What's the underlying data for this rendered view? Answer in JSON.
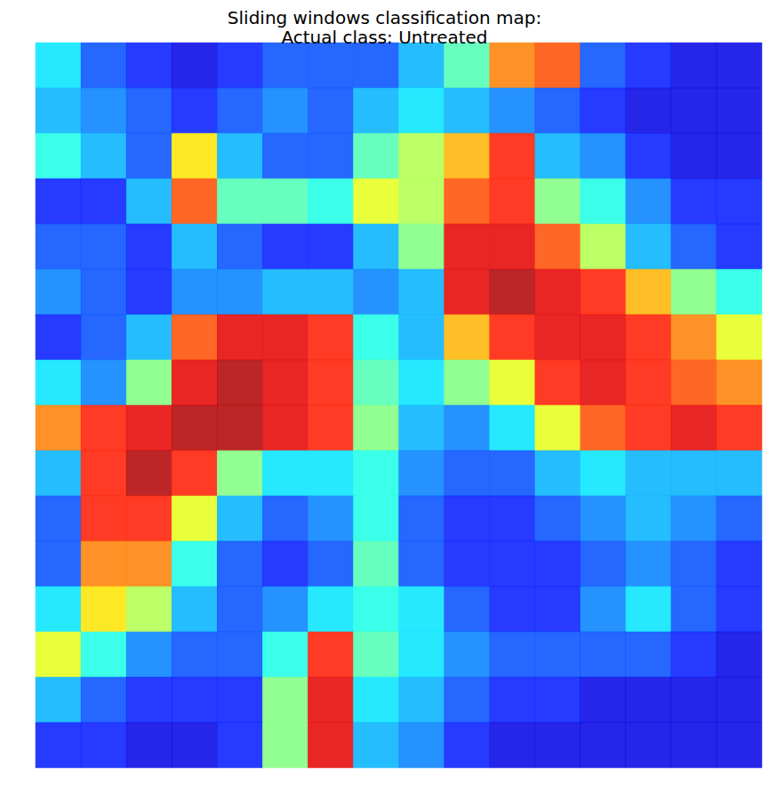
{
  "chart_data": {
    "type": "heatmap",
    "title": "Sliding windows classification map:\nActual class: Untreated",
    "tick_labels": false,
    "grid": false,
    "color_range": [
      0,
      1
    ],
    "cells": [
      [
        0.35,
        0.2,
        0.15,
        0.1,
        0.15,
        0.2,
        0.2,
        0.2,
        0.3,
        0.45,
        0.75,
        0.8,
        0.2,
        0.15,
        0.1,
        0.1
      ],
      [
        0.3,
        0.25,
        0.2,
        0.15,
        0.2,
        0.25,
        0.2,
        0.3,
        0.35,
        0.3,
        0.25,
        0.2,
        0.15,
        0.1,
        0.1,
        0.1
      ],
      [
        0.4,
        0.3,
        0.2,
        0.65,
        0.3,
        0.2,
        0.2,
        0.45,
        0.55,
        0.7,
        0.85,
        0.3,
        0.25,
        0.15,
        0.1,
        0.1
      ],
      [
        0.15,
        0.15,
        0.3,
        0.8,
        0.45,
        0.45,
        0.4,
        0.6,
        0.55,
        0.8,
        0.85,
        0.5,
        0.4,
        0.25,
        0.15,
        0.15
      ],
      [
        0.2,
        0.2,
        0.15,
        0.3,
        0.2,
        0.15,
        0.15,
        0.3,
        0.5,
        0.9,
        0.9,
        0.8,
        0.55,
        0.3,
        0.2,
        0.15
      ],
      [
        0.25,
        0.2,
        0.15,
        0.25,
        0.25,
        0.3,
        0.3,
        0.25,
        0.3,
        0.9,
        0.95,
        0.9,
        0.85,
        0.7,
        0.5,
        0.4
      ],
      [
        0.15,
        0.2,
        0.3,
        0.8,
        0.9,
        0.9,
        0.85,
        0.4,
        0.3,
        0.7,
        0.85,
        0.9,
        0.9,
        0.85,
        0.75,
        0.6
      ],
      [
        0.35,
        0.25,
        0.5,
        0.9,
        0.95,
        0.9,
        0.85,
        0.45,
        0.35,
        0.5,
        0.6,
        0.85,
        0.9,
        0.85,
        0.8,
        0.75
      ],
      [
        0.75,
        0.85,
        0.9,
        0.95,
        0.95,
        0.9,
        0.85,
        0.5,
        0.3,
        0.25,
        0.35,
        0.6,
        0.8,
        0.85,
        0.9,
        0.85
      ],
      [
        0.3,
        0.85,
        0.95,
        0.85,
        0.5,
        0.35,
        0.35,
        0.4,
        0.25,
        0.2,
        0.2,
        0.3,
        0.35,
        0.3,
        0.3,
        0.3
      ],
      [
        0.2,
        0.85,
        0.85,
        0.6,
        0.3,
        0.2,
        0.25,
        0.4,
        0.2,
        0.15,
        0.15,
        0.2,
        0.25,
        0.3,
        0.25,
        0.2
      ],
      [
        0.2,
        0.75,
        0.75,
        0.4,
        0.2,
        0.15,
        0.2,
        0.45,
        0.2,
        0.15,
        0.15,
        0.15,
        0.2,
        0.25,
        0.2,
        0.15
      ],
      [
        0.35,
        0.65,
        0.55,
        0.3,
        0.2,
        0.25,
        0.35,
        0.4,
        0.35,
        0.2,
        0.15,
        0.15,
        0.25,
        0.35,
        0.2,
        0.15
      ],
      [
        0.6,
        0.4,
        0.25,
        0.2,
        0.2,
        0.4,
        0.85,
        0.45,
        0.35,
        0.25,
        0.2,
        0.2,
        0.2,
        0.2,
        0.15,
        0.1
      ],
      [
        0.3,
        0.2,
        0.15,
        0.15,
        0.15,
        0.5,
        0.9,
        0.35,
        0.3,
        0.2,
        0.15,
        0.15,
        0.1,
        0.1,
        0.1,
        0.1
      ],
      [
        0.15,
        0.15,
        0.1,
        0.1,
        0.15,
        0.5,
        0.9,
        0.3,
        0.25,
        0.15,
        0.1,
        0.1,
        0.1,
        0.1,
        0.1,
        0.1
      ]
    ]
  }
}
